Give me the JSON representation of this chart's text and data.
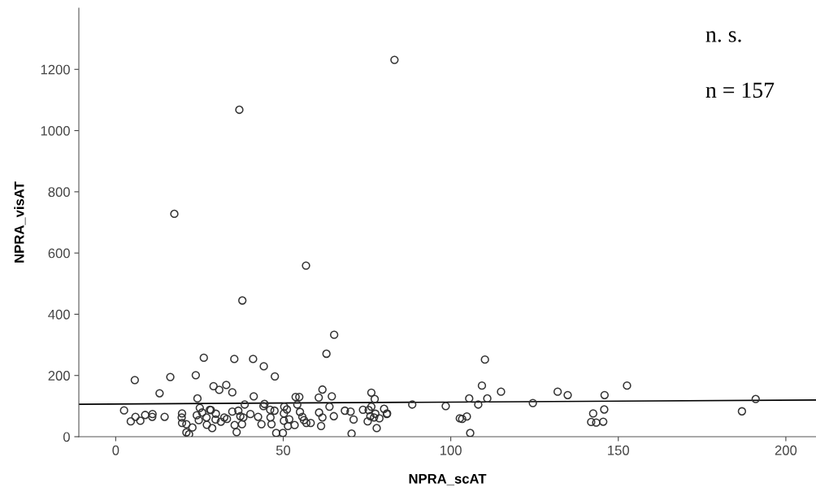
{
  "chart_data": {
    "type": "scatter",
    "xlabel": "NPRA_scAT",
    "ylabel": "NPRA_visAT",
    "xlim": [
      -11,
      209
    ],
    "ylim": [
      0,
      1400
    ],
    "xticks": [
      0,
      50,
      100,
      150,
      200
    ],
    "yticks": [
      0,
      200,
      400,
      600,
      800,
      1000,
      1200
    ],
    "grid": false,
    "legend": false,
    "marker": "circle",
    "annotations": [
      "n. s.",
      "n = 157"
    ],
    "series": [
      {
        "color": "#333333",
        "x": [
          83.2,
          36.9,
          17.5,
          56.8,
          37.8,
          65.2,
          62.9,
          26.3,
          35.4,
          41.0,
          44.2,
          5.7,
          16.3,
          23.9,
          47.5,
          13.1,
          29.2,
          30.9,
          33.0,
          34.8,
          24.4,
          41.2,
          53.7,
          54.8,
          61.7,
          60.6,
          64.5,
          76.3,
          77.3,
          88.5,
          2.5,
          4.5,
          5.9,
          7.35,
          8.8,
          11.0,
          10.9,
          14.6,
          19.8,
          19.7,
          19.8,
          21.1,
          22.9,
          21.1,
          21.9,
          24.2,
          25.1,
          25.8,
          24.8,
          27.1,
          27.2,
          28.1,
          28.4,
          28.8,
          29.9,
          29.8,
          31.4,
          32.4,
          33.2,
          34.8,
          35.5,
          36.1,
          36.6,
          37.2,
          37.7,
          38.1,
          38.5,
          40.2,
          42.5,
          43.5,
          44.4,
          44.1,
          46.1,
          46.2,
          46.5,
          47.4,
          47.9,
          49.9,
          50.3,
          51.1,
          50.2,
          50.2,
          51.8,
          51.4,
          53.4,
          54.2,
          55.0,
          55.7,
          56.2,
          56.9,
          58.2,
          60.7,
          61.7,
          61.3,
          63.8,
          65.1,
          68.4,
          70.1,
          71.0,
          70.4,
          73.8,
          75.5,
          76.3,
          76.0,
          75.2,
          77.1,
          77.5,
          78.7,
          77.9,
          80.1,
          81.0,
          80.9,
          98.5,
          110.2,
          109.3,
          115.0,
          105.5,
          110.9,
          108.2,
          102.7,
          103.4,
          104.8,
          105.8,
          124.5,
          131.9,
          134.9,
          145.9,
          145.8,
          142.5,
          141.9,
          143.4,
          145.5,
          152.6,
          186.9,
          191.0
        ],
        "values": [
          1231,
          1068,
          728,
          559,
          445,
          333,
          271,
          258,
          254,
          254,
          230,
          185,
          195,
          201,
          197,
          142,
          165,
          153,
          169,
          145,
          125,
          132,
          130,
          130,
          154,
          128,
          132,
          144,
          123,
          105,
          86,
          50,
          65,
          52,
          71,
          74,
          65,
          65,
          76,
          63,
          45,
          41,
          30,
          14,
          8,
          70,
          94,
          79,
          54,
          63,
          39,
          88,
          87,
          28,
          75,
          56,
          49,
          63,
          58,
          82,
          38,
          15,
          85,
          67,
          41,
          63,
          105,
          74,
          65,
          41,
          107,
          100,
          88,
          63,
          41,
          85,
          12,
          12,
          98,
          89,
          76,
          52,
          57,
          35,
          38,
          105,
          81,
          65,
          54,
          45,
          45,
          79,
          63,
          35,
          98,
          67,
          85,
          82,
          56,
          10,
          88,
          87,
          98,
          67,
          50,
          63,
          75,
          60,
          28,
          91,
          76,
          74,
          100,
          252,
          167,
          147,
          125,
          125,
          105,
          60,
          58,
          66,
          12,
          110,
          147,
          136,
          136,
          89,
          76,
          48,
          46,
          49,
          167,
          83,
          123
        ]
      },
      {
        "type": "line",
        "color": "#000000",
        "marker": "none",
        "line_style": "solid",
        "x": [
          -11,
          209
        ],
        "values": [
          106,
          120
        ]
      }
    ]
  }
}
